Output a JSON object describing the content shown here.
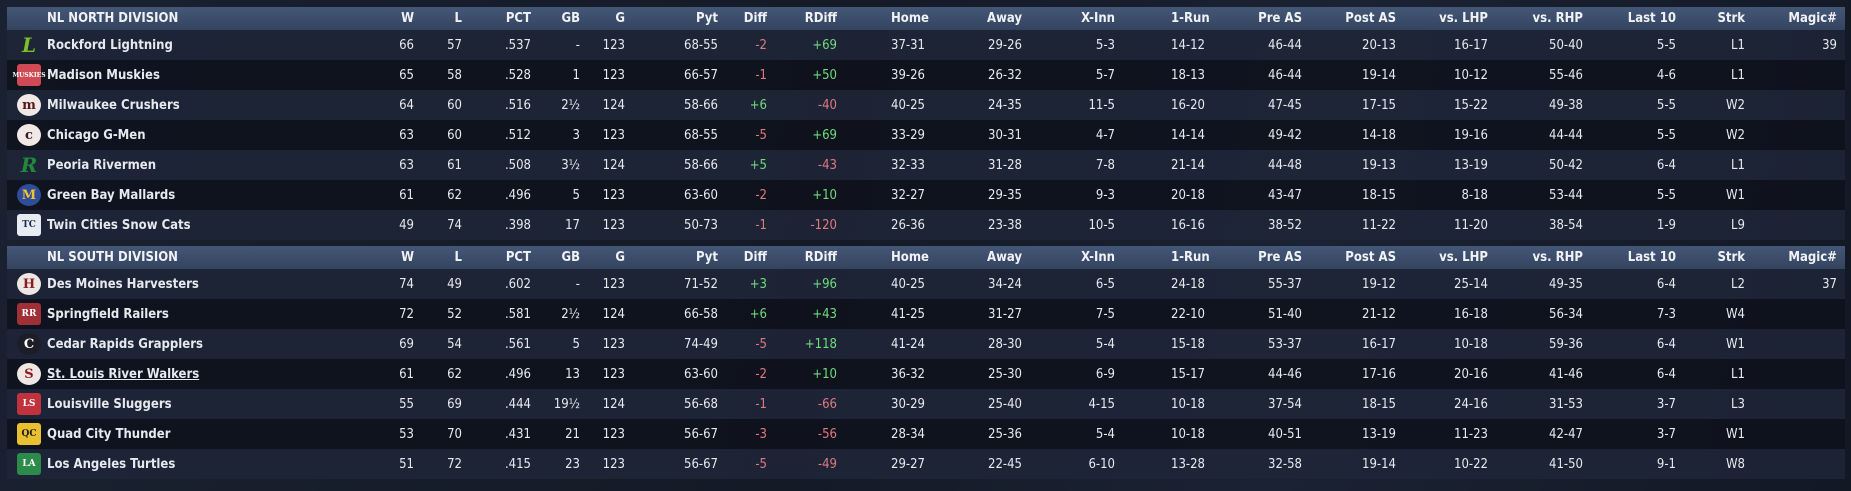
{
  "columns": [
    "W",
    "L",
    "PCT",
    "GB",
    "G",
    "Pyt",
    "Diff",
    "RDiff",
    "Home",
    "Away",
    "X-Inn",
    "1-Run",
    "Pre AS",
    "Post AS",
    "vs. LHP",
    "vs. RHP",
    "Last 10",
    "Strk",
    "Magic#"
  ],
  "colors": {
    "positive": "#6fdc7c",
    "negative": "#e07880",
    "header": "#3c4d6b"
  },
  "divisions": [
    {
      "title": "NL NORTH DIVISION",
      "teams": [
        {
          "name": "Rockford Lightning",
          "logo": "L",
          "logo_color": "#7bbf2a",
          "logo_bg": "transparent",
          "stats": [
            "66",
            "57",
            ".537",
            "-",
            "123",
            "68-55",
            "-2",
            "+69",
            "37-31",
            "29-26",
            "5-3",
            "14-12",
            "46-44",
            "20-13",
            "16-17",
            "50-40",
            "5-5",
            "L1",
            "39"
          ]
        },
        {
          "name": "Madison Muskies",
          "logo": "MUSKIES",
          "logo_color": "#ffffff",
          "logo_bg": "#d04a55",
          "stats": [
            "65",
            "58",
            ".528",
            "1",
            "123",
            "66-57",
            "-1",
            "+50",
            "39-26",
            "26-32",
            "5-7",
            "18-13",
            "46-44",
            "19-14",
            "10-12",
            "55-46",
            "4-6",
            "L1",
            ""
          ]
        },
        {
          "name": "Milwaukee Crushers",
          "logo": "m",
          "logo_color": "#5a1820",
          "logo_bg": "#f1e9e6",
          "stats": [
            "64",
            "60",
            ".516",
            "2½",
            "124",
            "58-66",
            "+6",
            "-40",
            "40-25",
            "24-35",
            "11-5",
            "16-20",
            "47-45",
            "17-15",
            "15-22",
            "49-38",
            "5-5",
            "W2",
            ""
          ]
        },
        {
          "name": "Chicago G-Men",
          "logo": "c",
          "logo_color": "#3a1a20",
          "logo_bg": "#f1e9e6",
          "stats": [
            "63",
            "60",
            ".512",
            "3",
            "123",
            "68-55",
            "-5",
            "+69",
            "33-29",
            "30-31",
            "4-7",
            "14-14",
            "49-42",
            "14-18",
            "19-16",
            "44-44",
            "5-5",
            "W2",
            ""
          ]
        },
        {
          "name": "Peoria Rivermen",
          "logo": "R",
          "logo_color": "#1f8a3a",
          "logo_bg": "transparent",
          "stats": [
            "63",
            "61",
            ".508",
            "3½",
            "124",
            "58-66",
            "+5",
            "-43",
            "32-33",
            "31-28",
            "7-8",
            "21-14",
            "44-48",
            "19-13",
            "13-19",
            "50-42",
            "6-4",
            "L1",
            ""
          ]
        },
        {
          "name": "Green Bay  Mallards",
          "logo": "M",
          "logo_color": "#f2c230",
          "logo_bg": "#2d4d9a",
          "stats": [
            "61",
            "62",
            ".496",
            "5",
            "123",
            "63-60",
            "-2",
            "+10",
            "32-27",
            "29-35",
            "9-3",
            "20-18",
            "43-47",
            "18-15",
            "8-18",
            "53-44",
            "5-5",
            "W1",
            ""
          ]
        },
        {
          "name": "Twin Cities Snow Cats",
          "logo": "TC",
          "logo_color": "#1b2a4a",
          "logo_bg": "#e8ecf2",
          "stats": [
            "49",
            "74",
            ".398",
            "17",
            "123",
            "50-73",
            "-1",
            "-120",
            "26-36",
            "23-38",
            "10-5",
            "16-16",
            "38-52",
            "11-22",
            "11-20",
            "38-54",
            "1-9",
            "L9",
            ""
          ]
        }
      ]
    },
    {
      "title": "NL SOUTH DIVISION",
      "teams": [
        {
          "name": "Des Moines Harvesters",
          "logo": "H",
          "logo_color": "#8a1c24",
          "logo_bg": "#efe7e4",
          "stats": [
            "74",
            "49",
            ".602",
            "-",
            "123",
            "71-52",
            "+3",
            "+96",
            "40-25",
            "34-24",
            "6-5",
            "24-18",
            "55-37",
            "19-12",
            "25-14",
            "49-35",
            "6-4",
            "L2",
            "37"
          ]
        },
        {
          "name": "Springfield Railers",
          "logo": "RR",
          "logo_color": "#ffffff",
          "logo_bg": "#a03038",
          "stats": [
            "72",
            "52",
            ".581",
            "2½",
            "124",
            "66-58",
            "+6",
            "+43",
            "41-25",
            "31-27",
            "7-5",
            "22-10",
            "51-40",
            "21-12",
            "16-18",
            "56-34",
            "7-3",
            "W4",
            ""
          ]
        },
        {
          "name": "Cedar Rapids Grapplers",
          "logo": "C",
          "logo_color": "#ffffff",
          "logo_bg": "#1d1d28",
          "stats": [
            "69",
            "54",
            ".561",
            "5",
            "123",
            "74-49",
            "-5",
            "+118",
            "41-24",
            "28-30",
            "5-4",
            "15-18",
            "53-37",
            "16-17",
            "10-18",
            "59-36",
            "6-4",
            "W1",
            ""
          ]
        },
        {
          "name": "St. Louis River Walkers",
          "logo": "S",
          "logo_color": "#8a1c24",
          "logo_bg": "#efe7e4",
          "link": true,
          "stats": [
            "61",
            "62",
            ".496",
            "13",
            "123",
            "63-60",
            "-2",
            "+10",
            "36-32",
            "25-30",
            "6-9",
            "15-17",
            "44-46",
            "17-16",
            "20-16",
            "41-46",
            "6-4",
            "L1",
            ""
          ]
        },
        {
          "name": "Louisville Sluggers",
          "logo": "LS",
          "logo_color": "#ffffff",
          "logo_bg": "#c0323c",
          "stats": [
            "55",
            "69",
            ".444",
            "19½",
            "124",
            "56-68",
            "-1",
            "-66",
            "30-29",
            "25-40",
            "4-15",
            "10-18",
            "37-54",
            "18-15",
            "24-16",
            "31-53",
            "3-7",
            "L3",
            ""
          ]
        },
        {
          "name": "Quad City Thunder",
          "logo": "QC",
          "logo_color": "#1a1a1a",
          "logo_bg": "#e8c030",
          "stats": [
            "53",
            "70",
            ".431",
            "21",
            "123",
            "56-67",
            "-3",
            "-56",
            "28-34",
            "25-36",
            "5-4",
            "10-18",
            "40-51",
            "13-19",
            "11-23",
            "42-47",
            "3-7",
            "W1",
            ""
          ]
        },
        {
          "name": "Los Angeles Turtles",
          "logo": "LA",
          "logo_color": "#ffffff",
          "logo_bg": "#2c8a4a",
          "stats": [
            "51",
            "72",
            ".415",
            "23",
            "123",
            "56-67",
            "-5",
            "-49",
            "29-27",
            "22-45",
            "6-10",
            "13-28",
            "32-58",
            "19-14",
            "10-22",
            "41-50",
            "9-1",
            "W8",
            ""
          ]
        }
      ]
    }
  ]
}
